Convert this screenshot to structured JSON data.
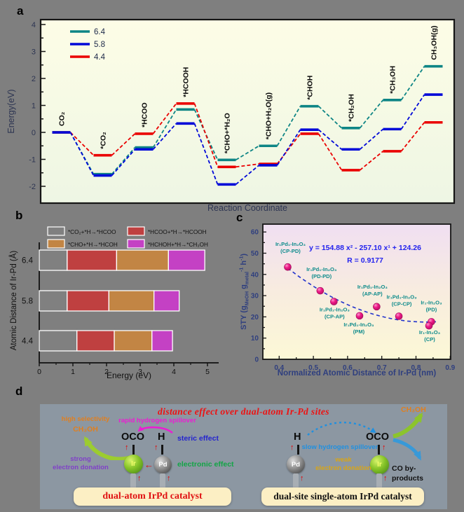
{
  "bg_color": "#7f7f7f",
  "panel_a": {
    "label": "a",
    "ylabel": "Energy(eV)",
    "xlabel": "Reaction Coordinate",
    "chart_data": {
      "type": "line",
      "subtype": "reaction-energy-profile",
      "categories": [
        "CO₂",
        "*CO₂",
        "*HCOO",
        "*HCOOH",
        "*CHO+*H₂O",
        "*CHO+H₂O(g)",
        "*CHOH",
        "*CH₂OH",
        "*CH₃OH",
        "CH₃OH(g)"
      ],
      "series": [
        {
          "name": "6.4",
          "color": "#0e8585",
          "values": [
            0,
            -1.55,
            -0.56,
            0.85,
            -1.02,
            -0.5,
            0.97,
            0.16,
            1.2,
            2.45
          ]
        },
        {
          "name": "5.8",
          "color": "#0008d8",
          "values": [
            0,
            -1.6,
            -0.63,
            0.33,
            -1.93,
            -1.22,
            0.1,
            -0.63,
            0.12,
            1.4
          ]
        },
        {
          "name": "4.4",
          "color": "#ea0000",
          "values": [
            0,
            -0.85,
            -0.05,
            1.07,
            -1.28,
            -1.17,
            -0.05,
            -1.4,
            -0.7,
            0.37
          ]
        }
      ],
      "yticks": [
        4,
        3,
        2,
        1,
        0,
        -1,
        -2
      ],
      "ylim": [
        -2.6,
        4.2
      ],
      "legend_position": "top-left",
      "grid": false
    }
  },
  "panel_b": {
    "label": "b",
    "ylabel": "Atomic Distance of Ir-Pd (Å)",
    "xlabel": "Energy (eV)",
    "chart_data": {
      "type": "bar",
      "orientation": "horizontal",
      "stacked": true,
      "categories": [
        "6.4",
        "5.8",
        "4.4"
      ],
      "legend": [
        {
          "label": "*CO₂+*H→*HCOO",
          "color": "#808080"
        },
        {
          "label": "*HCOO+*H→*HCOOH",
          "color": "#bf4040"
        },
        {
          "label": "*CHO+*H→*HCOH",
          "color": "#c28544"
        },
        {
          "label": "*HCHOH+*H→*CH₃OH",
          "color": "#c441c4"
        }
      ],
      "values": [
        [
          0.83,
          1.47,
          1.54,
          1.08
        ],
        [
          0.83,
          1.24,
          1.34,
          0.75
        ],
        [
          1.12,
          1.11,
          1.12,
          0.61
        ]
      ],
      "xticks": [
        0,
        1,
        2,
        3,
        4,
        5
      ],
      "xlim": [
        0,
        5.3
      ]
    }
  },
  "panel_c": {
    "label": "c",
    "ylabel": {
      "p1": "STY (g",
      "s1": "MeOH",
      "p2": " g",
      "s2": "metal",
      "sup1": "-1",
      "p3": " h",
      "sup2": "-1",
      "p4": ")"
    },
    "xlabel": "Normalized Atomic Distance of Ir-Pd (nm)",
    "equation": "y = 154.88 x² - 257.10 x¹ + 124.26",
    "r_label": "R = 0.9177",
    "fit": {
      "a": 154.88,
      "b": -257.1,
      "c": 124.26,
      "domain": [
        0.425,
        0.865
      ]
    },
    "chart_data": {
      "type": "scatter",
      "xticks": [
        0.4,
        0.5,
        0.6,
        0.7,
        0.8,
        0.9
      ],
      "yticks": [
        0,
        10,
        20,
        30,
        40,
        50,
        60
      ],
      "xlim": [
        0.35,
        0.9
      ],
      "ylim": [
        0,
        63
      ],
      "point_color": "#e81780",
      "label_color": "#0d8b8b",
      "fit_color": "#2233cc",
      "equation_color": "#2222ee",
      "points": [
        {
          "name": "Ir₁Pd₁-In₂O₃",
          "site": "(CP-PD)",
          "x": 0.425,
          "y": 43.5,
          "lx": 4,
          "ly": -30
        },
        {
          "name": "Ir₁Pd₁-In₂O₃",
          "site": "(PD-PD)",
          "x": 0.52,
          "y": 32.3,
          "lx": 2,
          "ly": -28
        },
        {
          "name": "Ir₁Pd₁-In₂O₃",
          "site": "(CP-AP)",
          "x": 0.56,
          "y": 27.2,
          "lx": 1,
          "ly": 14
        },
        {
          "name": "Ir₁Pd₁-In₂O₃",
          "site": "(PM)",
          "x": 0.635,
          "y": 20.5,
          "lx": -1,
          "ly": 15
        },
        {
          "name": "Ir₁Pd₁-In₂O₃",
          "site": "(AP-AP)",
          "x": 0.685,
          "y": 24.8,
          "lx": -6,
          "ly": -26
        },
        {
          "name": "Ir₁Pd₁-In₂O₃",
          "site": "(CP-CP)",
          "x": 0.75,
          "y": 20.3,
          "lx": 4,
          "ly": -25
        },
        {
          "name": "Ir₁-In₂O₃",
          "site": "(PD)",
          "x": 0.845,
          "y": 17.7,
          "lx": 0,
          "ly": -25
        },
        {
          "name": "Ir₁-In₂O₃",
          "site": "(CP)",
          "x": 0.838,
          "y": 15.8,
          "lx": 1,
          "ly": 12
        }
      ]
    }
  },
  "panel_d": {
    "label": "d",
    "title": "distance effect over dual-atom Ir-Pd sites",
    "icons": {
      "up_arrow": "↑",
      "left_arrow": "←"
    },
    "left": {
      "high_selectivity": "high selectivity",
      "ch3oh": "CH₃OH",
      "rapid_spillover": "rapid hydrogen spillover",
      "oco": "OCO",
      "h": "H",
      "steric_effect": "steric effect",
      "strong": "strong",
      "electron_donation": "electron donation",
      "electronic_effect": "electronic effect",
      "ir": "Ir",
      "pd": "Pd",
      "catalyst_box": "dual-atom IrPd catalyst"
    },
    "right": {
      "ch3oh": "CH₃OH",
      "h": "H",
      "oco": "OCO",
      "slow_spillover": "slow hydrogen spillover",
      "weak": "weak",
      "electron_donation": "electron donation",
      "co_byproducts": "CO by-products",
      "ir": "Ir",
      "pd": "Pd",
      "catalyst_box": "dual-site single-atom IrPd catalyst"
    }
  }
}
